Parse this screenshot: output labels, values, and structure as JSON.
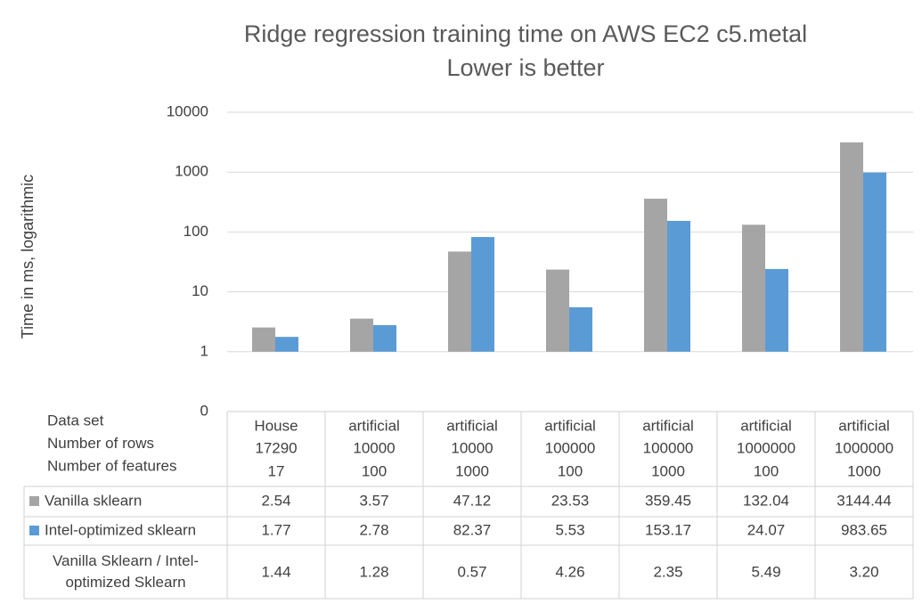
{
  "chart_data": {
    "type": "bar",
    "title": "Ridge regression training time on AWS EC2 c5.metal",
    "subtitle": "Lower is better",
    "y_label": "Time in ms, logarithmic",
    "log_scale": true,
    "grid": true,
    "ylim": [
      0.1,
      10000
    ],
    "yticks": [
      {
        "value": 0.1,
        "label": "0"
      },
      1,
      10,
      100,
      1000,
      10000
    ],
    "row_headers": [
      "Data set",
      "Number of rows",
      "Number of features"
    ],
    "categories": [
      "House",
      "artificial",
      "artificial",
      "artificial",
      "artificial",
      "artificial",
      "artificial"
    ],
    "rows": [
      17290,
      10000,
      10000,
      100000,
      100000,
      1000000,
      1000000
    ],
    "features": [
      17,
      100,
      1000,
      100,
      1000,
      100,
      1000
    ],
    "series": [
      {
        "name": "Vanilla sklearn",
        "color": "#a5a5a5",
        "values": [
          2.54,
          3.57,
          47.12,
          23.53,
          359.45,
          132.04,
          3144.44
        ]
      },
      {
        "name": "Intel-optimized sklearn",
        "color": "#5b9bd5",
        "values": [
          1.77,
          2.78,
          82.37,
          5.53,
          153.17,
          24.07,
          983.65
        ]
      }
    ],
    "ratio_name": "Vanilla Sklearn / Intel-optimized Sklearn",
    "ratio": {
      "values": [
        1.44,
        1.28,
        0.57,
        4.26,
        2.35,
        5.49,
        3.2
      ],
      "value_labels": [
        "1.44",
        "1.28",
        "0.57",
        "4.26",
        "2.35",
        "5.49",
        "3.20"
      ]
    }
  }
}
